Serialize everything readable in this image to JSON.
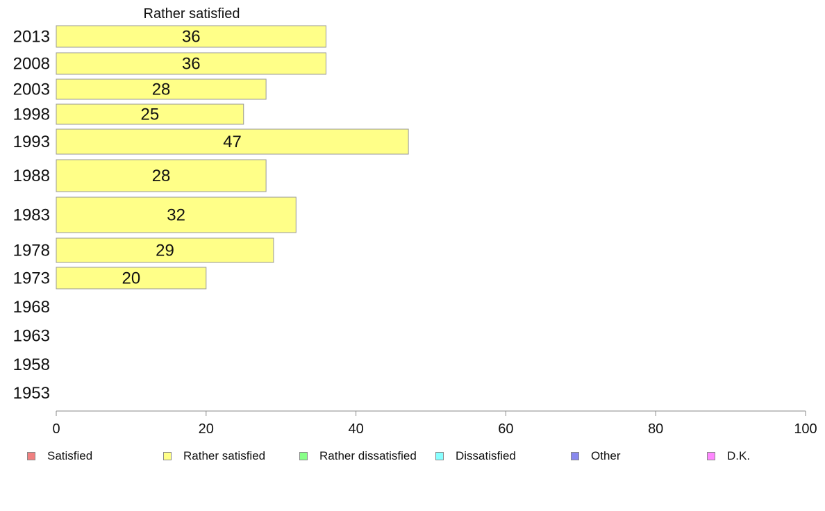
{
  "chart_data": {
    "type": "bar",
    "orientation": "horizontal",
    "title": "Rather satisfied",
    "categories": [
      "2013",
      "2008",
      "2003",
      "1998",
      "1993",
      "1988",
      "1983",
      "1978",
      "1973",
      "1968",
      "1963",
      "1958",
      "1953"
    ],
    "series": [
      {
        "name": "Rather satisfied",
        "color": "#ffff88",
        "values": [
          36,
          36,
          28,
          25,
          47,
          28,
          32,
          29,
          20,
          null,
          null,
          null,
          null
        ],
        "labels": [
          "36",
          "36",
          "28",
          "25",
          "47",
          "28",
          "32",
          "29",
          "20",
          "",
          "",
          "",
          ""
        ]
      }
    ],
    "xlim": [
      0,
      100
    ],
    "xticks": [
      0,
      20,
      40,
      60,
      80,
      100
    ],
    "xlabel": "",
    "ylabel": "",
    "grid": false,
    "legend_position": "bottom"
  },
  "legend": [
    {
      "label": "Satisfied",
      "color": "#f08080"
    },
    {
      "label": "Rather satisfied",
      "color": "#ffff88"
    },
    {
      "label": "Rather dissatisfied",
      "color": "#88ff88"
    },
    {
      "label": "Dissatisfied",
      "color": "#88ffff"
    },
    {
      "label": "Other",
      "color": "#8888ee"
    },
    {
      "label": "D.K.",
      "color": "#ff88ff"
    }
  ]
}
